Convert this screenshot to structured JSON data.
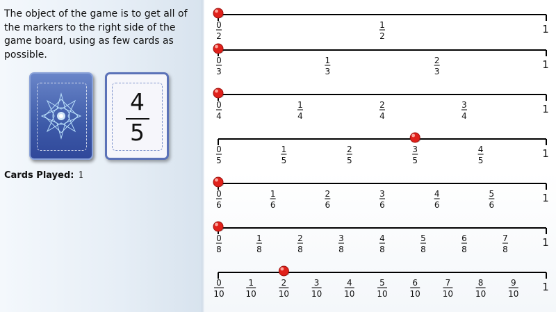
{
  "instructions": "The object of the game is to get all of the markers to the right side of the game board, using as few cards as possible.",
  "current_card": {
    "numerator": "4",
    "denominator": "5"
  },
  "deck_icon": "star-burst-icon",
  "cards_played": {
    "label": "Cards Played:",
    "value": "1"
  },
  "colors": {
    "marker": "#e0211b",
    "card_blue": "#3d5aa8",
    "card_border": "#5b72b8",
    "line": "#000000"
  },
  "board": {
    "end_label": "1",
    "lines": [
      {
        "denominator": 2,
        "labels": [
          "0/2",
          "1/2"
        ],
        "marker_position": 0
      },
      {
        "denominator": 3,
        "labels": [
          "0/3",
          "1/3",
          "2/3"
        ],
        "marker_position": 0
      },
      {
        "denominator": 4,
        "labels": [
          "0/4",
          "1/4",
          "2/4",
          "3/4"
        ],
        "marker_position": 0
      },
      {
        "denominator": 5,
        "labels": [
          "0/5",
          "1/5",
          "2/5",
          "3/5",
          "4/5"
        ],
        "marker_position": 3
      },
      {
        "denominator": 6,
        "labels": [
          "0/6",
          "1/6",
          "2/6",
          "3/6",
          "4/6",
          "5/6"
        ],
        "marker_position": 0
      },
      {
        "denominator": 8,
        "labels": [
          "0/8",
          "1/8",
          "2/8",
          "3/8",
          "4/8",
          "5/8",
          "6/8",
          "7/8"
        ],
        "marker_position": 0
      },
      {
        "denominator": 10,
        "labels": [
          "0/10",
          "1/10",
          "2/10",
          "3/10",
          "4/10",
          "5/10",
          "6/10",
          "7/10",
          "8/10",
          "9/10"
        ],
        "marker_position": 2
      }
    ]
  }
}
